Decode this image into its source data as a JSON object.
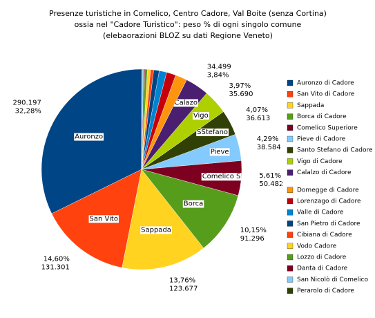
{
  "chart_data": {
    "type": "pie",
    "title": "Presenze turistiche in Comelico, Centro Cadore, Val Boite (senza Cortina)",
    "subtitle": "ossia nel \"Cadore Turistico\": peso % di ogni singolo comune",
    "note": "(elebaorazioni BLOZ su dati Regione Veneto)",
    "categories": [
      "Auronzo di Cadore",
      "San Vito di Cadore",
      "Sappada",
      "Borca di Cadore",
      "Comelico Superiore",
      "Pieve di Cadore",
      "Santo Stefano di Cadore",
      "Vigo di Cadore",
      "Calalzo di Cadore",
      "Domegge di Cadore",
      "Lorenzago di Cadore",
      "Valle di Cadore",
      "San Pietro di Cadore",
      "Cibiana di Cadore",
      "Vodo Cadore",
      "Lozzo di Cadore",
      "Danta di Cadore",
      "San Nicolò di Comelico",
      "Perarolo di Cadore"
    ],
    "slice_labels": [
      "Auronzo",
      "San Vito",
      "Sappada",
      "Borca",
      "Comelico S",
      "Pieve",
      "SStefano",
      "Vigo",
      "Calazo",
      null,
      null,
      null,
      null,
      null,
      null,
      null,
      null,
      null,
      null
    ],
    "values": [
      32.28,
      14.6,
      13.76,
      10.15,
      5.61,
      4.29,
      4.07,
      3.97,
      3.84,
      1.9,
      1.5,
      1.2,
      0.9,
      0.5,
      0.5,
      0.4,
      0.2,
      0.2,
      0.13
    ],
    "value_labels": [
      "32,28%",
      "14,60%",
      "13,76%",
      "10,15%",
      "5,61%",
      "4,29%",
      "4,07%",
      "3,97%",
      "3,84%",
      null,
      null,
      null,
      null,
      null,
      null,
      null,
      null,
      null,
      null
    ],
    "counts": [
      290197,
      131301,
      123677,
      91296,
      50482,
      38584,
      36613,
      35690,
      34499,
      null,
      null,
      null,
      null,
      null,
      null,
      null,
      null,
      null,
      null
    ],
    "count_labels": [
      "290.197",
      "131.301",
      "123.677",
      "91.296",
      "50.482",
      "38.584",
      "36.613",
      "35.690",
      "34.499",
      null,
      null,
      null,
      null,
      null,
      null,
      null,
      null,
      null,
      null
    ],
    "colors": [
      "#004586",
      "#ff420e",
      "#ffd320",
      "#579d1c",
      "#7e0021",
      "#83caff",
      "#314004",
      "#aecf00",
      "#4b1f6f",
      "#ff950e",
      "#c5000b",
      "#0084d1",
      "#004586",
      "#ff420e",
      "#ffd320",
      "#579d1c",
      "#7e0021",
      "#83caff",
      "#314004"
    ],
    "legend": "right"
  }
}
